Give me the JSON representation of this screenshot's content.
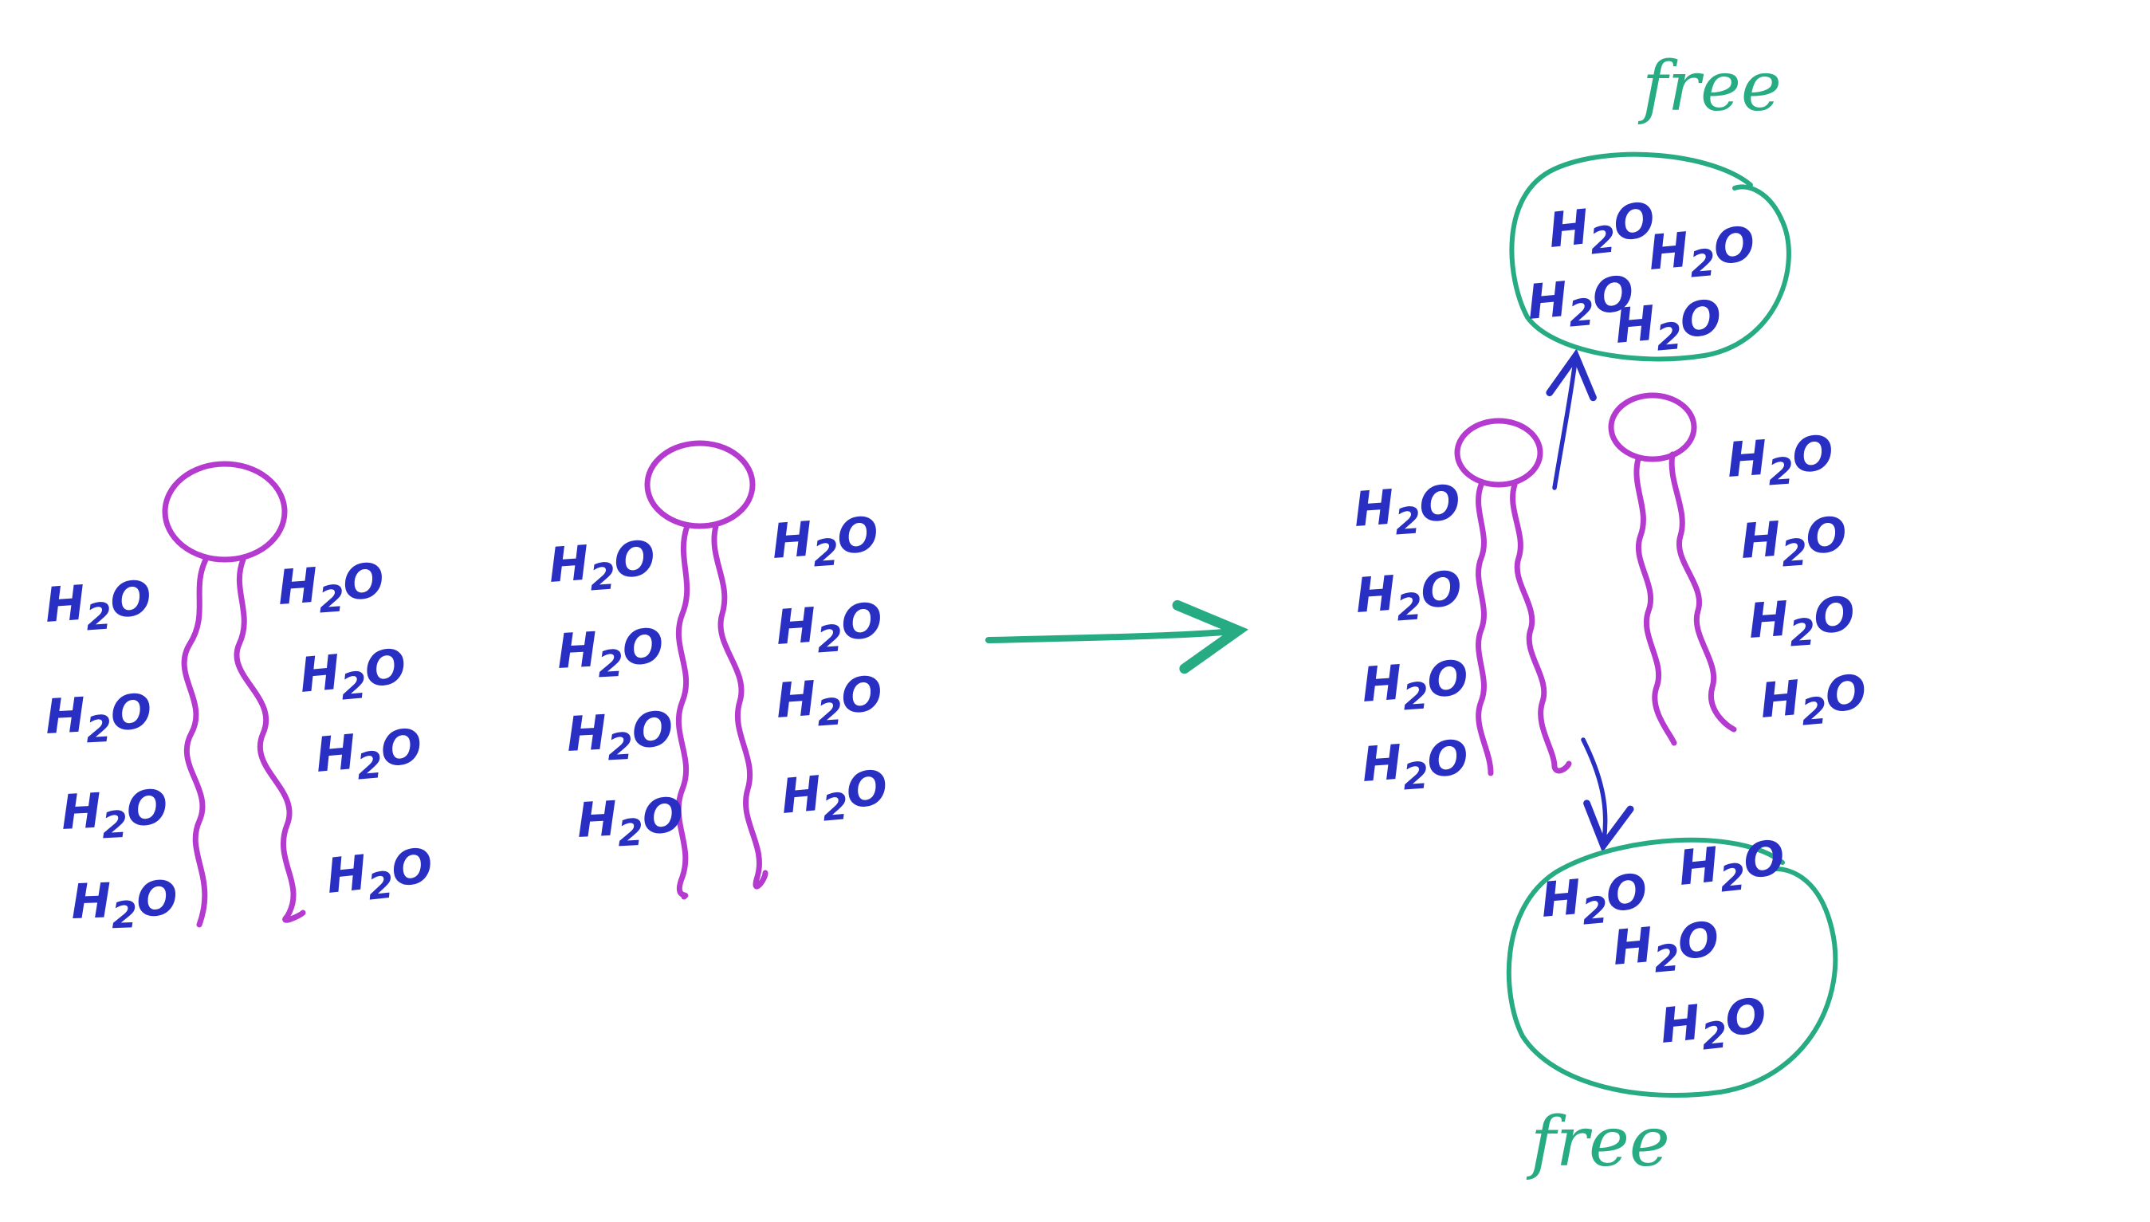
{
  "colors": {
    "background": "#ffffff",
    "lipid": "#b53ad0",
    "water": "#2a2fc4",
    "green": "#27ab83",
    "arrow_blue": "#2a2fc4"
  },
  "labels": {
    "water_main": "H",
    "water_sub": "2",
    "water_tail": "O",
    "free_top": "free",
    "free_bottom": "free"
  }
}
